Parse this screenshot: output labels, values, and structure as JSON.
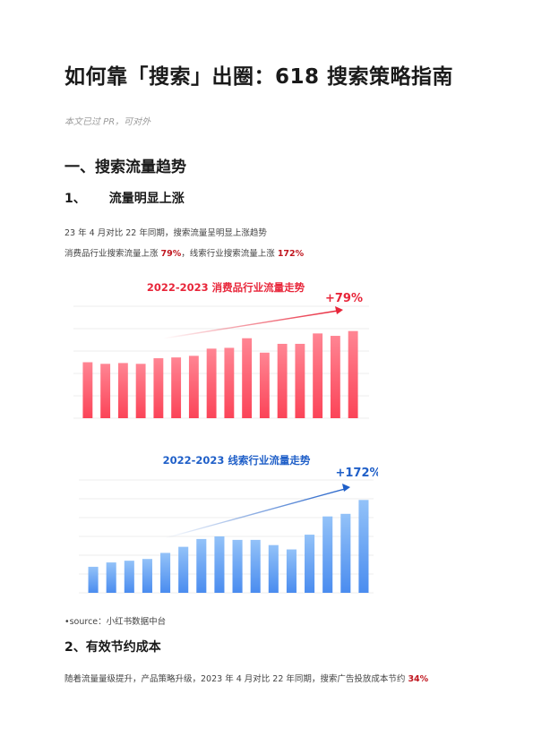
{
  "doc": {
    "title": "如何靠「搜索」出圈：618 搜索策略指南",
    "author": "本文已过 PR，可对外",
    "section1": "一、搜索流量趋势",
    "sub1_num": "1、",
    "sub1_text": "流量明显上涨",
    "para1": "23 年 4 月对比 22 年同期，搜索流量呈明显上涨趋势",
    "para2_a": "消费品行业搜索流量上涨 ",
    "para2_b": "79%",
    "para2_c": "，线索行业搜索流量上涨 ",
    "para2_d": "172%",
    "source": "•source：小红书数据中台",
    "sub2": "2、有效节约成本",
    "para3_a": "随着流量量级提升，产品策略升级，2023 年 4 月对比 22 年同期，搜索广告投放成本节约 ",
    "para3_b": "34%"
  },
  "colors": {
    "red_accent": "#e8263a",
    "red_bar_top": "#ff7b8a",
    "red_bar_bottom": "#fb4a5e",
    "blue_accent": "#1f5fc8",
    "blue_bar_top": "#8bbcf7",
    "blue_bar_bottom": "#4b8ef0",
    "red_text": "#c0161f"
  },
  "chart_data": [
    {
      "type": "bar",
      "title": "2022-2023 消费品行业流量走势",
      "annotation": "+79%",
      "values": [
        70,
        68,
        69,
        68,
        75,
        76,
        78,
        87,
        88,
        100,
        82,
        93,
        93,
        106,
        103,
        109
      ],
      "ylim": [
        0,
        140
      ],
      "grid": true
    },
    {
      "type": "bar",
      "title": "2022-2023 线索行业流量走势",
      "annotation": "+172%",
      "values": [
        30,
        35,
        37,
        39,
        46,
        53,
        62,
        65,
        61,
        61,
        55,
        50,
        67,
        88,
        91,
        107
      ],
      "ylim": [
        0,
        130
      ],
      "grid": true
    }
  ]
}
